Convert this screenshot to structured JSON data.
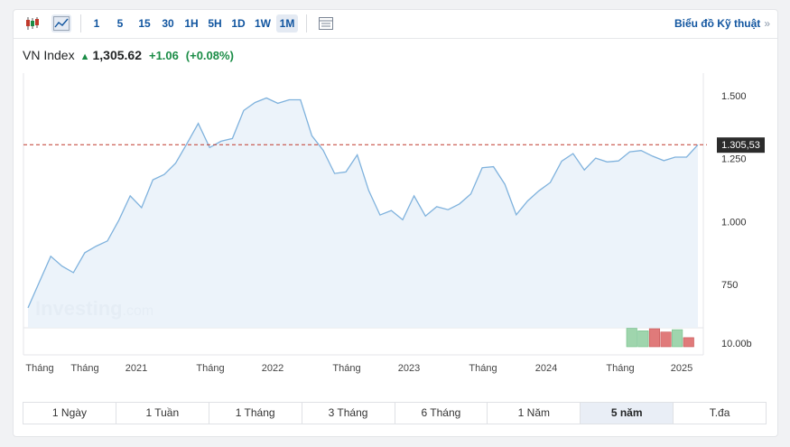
{
  "toolbar": {
    "intervals": [
      "1",
      "5",
      "15",
      "30",
      "1H",
      "5H",
      "1D",
      "1W",
      "1M"
    ],
    "active_interval": "1M",
    "technical_link": "Biểu đồ Kỹ thuật",
    "icons": [
      "candlestick-icon",
      "area-chart-icon",
      "table-icon"
    ]
  },
  "quote": {
    "symbol": "VN Index",
    "price": "1,305.62",
    "change": "+1.06",
    "change_pct": "(+0.08%)",
    "direction_icon": "arrow-up-icon"
  },
  "watermark": {
    "brand": "Investing",
    "suffix": ".com"
  },
  "colors": {
    "line": "#7fb2dd",
    "area": "#e9f1f9",
    "positive": "#1a8c46",
    "volume_up": "#9fd5ad",
    "volume_down": "#e07a7a",
    "reference_line": "#c0392b",
    "price_tag": "#2b2b2b"
  },
  "chart_data": {
    "type": "area",
    "y_axis": {
      "ticks": [
        "1.500",
        "1.250",
        "1.000",
        "750"
      ],
      "tick_values": [
        1500,
        1250,
        1000,
        750
      ]
    },
    "x_axis": {
      "labels": [
        "Tháng",
        "Tháng",
        "2021",
        "Tháng",
        "2022",
        "Tháng",
        "2023",
        "Tháng",
        "2024",
        "Tháng",
        "2025"
      ]
    },
    "current_price_label": "1.305,53",
    "current_price": 1305.53,
    "volume_axis_label": "10.00b",
    "series": [
      {
        "values": [
          657,
          760,
          862,
          823,
          797,
          876,
          902,
          923,
          1005,
          1102,
          1055,
          1166,
          1187,
          1232,
          1310,
          1390,
          1294,
          1319,
          1330,
          1441,
          1473,
          1491,
          1470,
          1484,
          1484,
          1341,
          1283,
          1191,
          1197,
          1265,
          1124,
          1026,
          1044,
          1007,
          1102,
          1022,
          1059,
          1047,
          1070,
          1110,
          1214,
          1218,
          1148,
          1027,
          1082,
          1122,
          1155,
          1240,
          1270,
          1205,
          1252,
          1237,
          1241,
          1277,
          1282,
          1260,
          1242,
          1256,
          1256,
          1305
        ]
      }
    ],
    "volume": [
      {
        "value": 9.5,
        "dir": "up"
      },
      {
        "value": 8.2,
        "dir": "up"
      },
      {
        "value": 9.3,
        "dir": "down"
      },
      {
        "value": 7.6,
        "dir": "down"
      },
      {
        "value": 8.8,
        "dir": "up"
      },
      {
        "value": 4.7,
        "dir": "down"
      }
    ]
  },
  "range_bar": {
    "items": [
      "1 Ngày",
      "1 Tuần",
      "1 Tháng",
      "3 Tháng",
      "6 Tháng",
      "1 Năm",
      "5 năm",
      "T.đa"
    ],
    "active": "5 năm"
  }
}
